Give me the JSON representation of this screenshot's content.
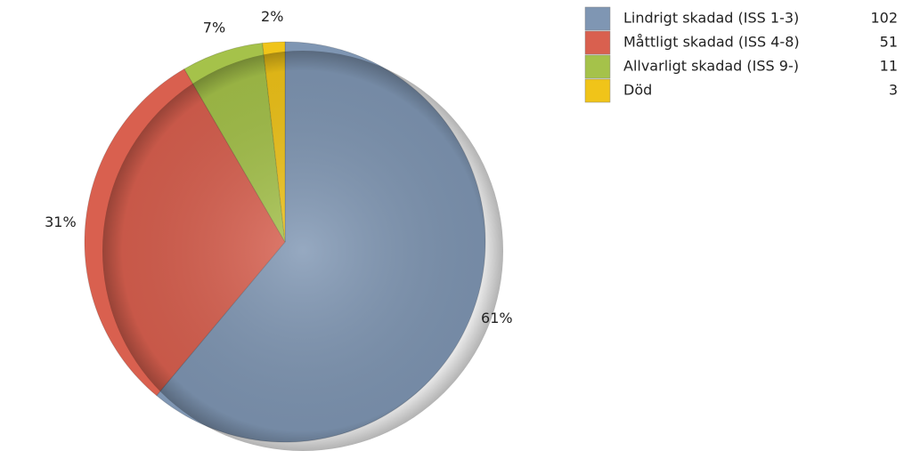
{
  "chart_data": {
    "type": "pie",
    "categories": [
      "Lindrigt skadad (ISS 1-3)",
      "Måttligt skadad (ISS 4-8)",
      "Allvarligt skadad (ISS 9-)",
      "Död"
    ],
    "values": [
      102,
      51,
      11,
      3
    ],
    "slice_labels": [
      "61%",
      "31%",
      "7%",
      "2%"
    ],
    "colors": [
      "#7f96b3",
      "#d9604f",
      "#a5c24a",
      "#f0c419"
    ],
    "start_angle": 0,
    "direction": "clockwise",
    "legend": "top-right"
  }
}
